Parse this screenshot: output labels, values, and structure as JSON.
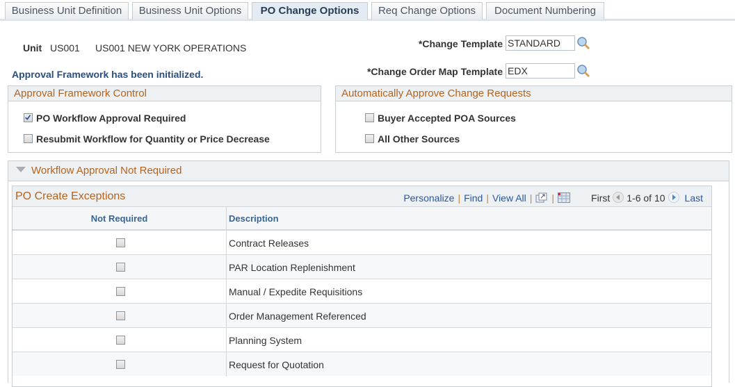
{
  "tabs": [
    {
      "label": "Business Unit Definition",
      "active": false
    },
    {
      "label": "Business Unit Options",
      "active": false
    },
    {
      "label": "PO Change Options",
      "active": true
    },
    {
      "label": "Req Change Options",
      "active": false
    },
    {
      "label": "Document Numbering",
      "active": false
    }
  ],
  "unit": {
    "label": "Unit",
    "code": "US001",
    "description": "US001 NEW YORK OPERATIONS"
  },
  "status_message": "Approval Framework has been initialized.",
  "change_template": {
    "label": "*Change Template",
    "value": "STANDARD",
    "icon": "lookup-icon"
  },
  "change_order_map_template": {
    "label": "*Change Order Map Template",
    "value": "EDX",
    "icon": "lookup-icon"
  },
  "approval_framework_control": {
    "title": "Approval Framework Control",
    "options": [
      {
        "label": "PO Workflow Approval Required",
        "checked": true
      },
      {
        "label": "Resubmit Workflow for Quantity or Price Decrease",
        "checked": false
      }
    ]
  },
  "auto_approve": {
    "title": "Automatically Approve Change Requests",
    "options": [
      {
        "label": "Buyer Accepted POA Sources",
        "checked": false
      },
      {
        "label": "All Other Sources",
        "checked": false
      }
    ]
  },
  "workflow_section": {
    "title": "Workflow Approval Not Required",
    "expanded": true
  },
  "grid": {
    "title": "PO Create Exceptions",
    "personalize": "Personalize",
    "find": "Find",
    "view_all": "View All",
    "first": "First",
    "range": "1-6 of 10",
    "last": "Last",
    "columns": [
      "Not Required",
      "Description"
    ],
    "rows": [
      {
        "checked": false,
        "description": "Contract Releases"
      },
      {
        "checked": false,
        "description": "PAR Location Replenishment"
      },
      {
        "checked": false,
        "description": "Manual / Expedite Requisitions"
      },
      {
        "checked": false,
        "description": "Order Management Referenced"
      },
      {
        "checked": false,
        "description": "Planning System"
      },
      {
        "checked": false,
        "description": "Request for Quotation"
      }
    ]
  },
  "colors": {
    "section_title": "#b4631e",
    "link": "#2856a0",
    "status": "#2a4f80"
  }
}
